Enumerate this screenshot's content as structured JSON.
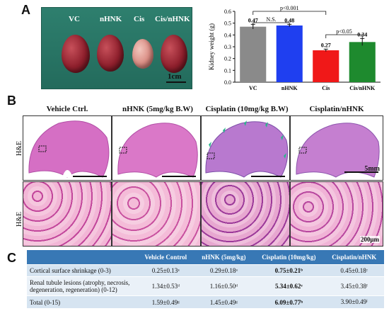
{
  "panel_a": {
    "letter": "A",
    "photo_labels": [
      "VC",
      "nHNK",
      "Cis",
      "Cis/nHNK"
    ],
    "photo_scale": "1cm",
    "chart": {
      "ylabel": "Kidney weight (g)",
      "categories": [
        "VC",
        "nHNK",
        "Cis",
        "Cis/nHNK"
      ],
      "values": [
        0.47,
        0.48,
        0.27,
        0.34
      ],
      "value_labels": [
        "0.47",
        "0.48",
        "0.27",
        "0.34"
      ],
      "errors": [
        0.02,
        0.01,
        0.01,
        0.03
      ],
      "colors": [
        "#8a8a8a",
        "#1f3ff0",
        "#f01818",
        "#1e8a2e"
      ],
      "yticks": [
        "0.0",
        "0.1",
        "0.2",
        "0.3",
        "0.4",
        "0.5",
        "0.6"
      ],
      "ylim": [
        0,
        0.6
      ],
      "sig": [
        {
          "label": "N.S.",
          "from": 0,
          "to": 1
        },
        {
          "label": "p<0.001",
          "from": 0,
          "to": 2
        },
        {
          "label": "p<0.05",
          "from": 2,
          "to": 3
        }
      ]
    }
  },
  "chart_data": {
    "type": "bar",
    "categories": [
      "VC",
      "nHNK",
      "Cis",
      "Cis/nHNK"
    ],
    "values": [
      0.47,
      0.48,
      0.27,
      0.34
    ],
    "xlabel": "",
    "ylabel": "Kidney weight (g)",
    "ylim": [
      0,
      0.6
    ]
  },
  "panel_b": {
    "letter": "B",
    "titles": [
      "Vehicle Ctrl.",
      "nHNK (5mg/kg B.W)",
      "Cisplatin (10mg/kg B.W)",
      "Cisplatin/nHNK"
    ],
    "row_labels": [
      "H&E",
      "H&E"
    ],
    "scale_top": "5mm",
    "scale_bottom": "200μm"
  },
  "panel_c": {
    "letter": "C",
    "headers": [
      "",
      "Vehicle Control",
      "nHNK (5mg/kg)",
      "Cisplatin (10mg/kg)",
      "Cisplatin/nHNK"
    ],
    "rows": [
      {
        "label": "Cortical surface shrinkage (0-3)",
        "cells": [
          "0.25±0.13ᵃ",
          "0.29±0.18ᵃ",
          "0.75±0.21ᵇ",
          "0.45±0.18ᶜ"
        ]
      },
      {
        "label": "Renal tubule lesions (atrophy, necrosis, degeneration, regeneration) (0-12)",
        "cells": [
          "1.34±0.53ᵈ",
          "1.16±0.50ᵈ",
          "5.34±0.62ᵉ",
          "3.45±0.38ᶠ"
        ]
      },
      {
        "label": "Total (0-15)",
        "cells": [
          "1.59±0.49ᵍ",
          "1.45±0.49ᵍ",
          "6.09±0.77ʰ",
          "3.90±0.49ⁱ"
        ]
      }
    ]
  }
}
